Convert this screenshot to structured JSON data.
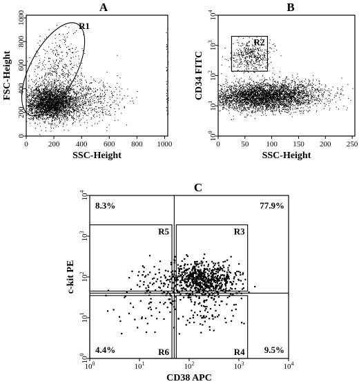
{
  "panels": [
    {
      "panel_label": "A",
      "chart_data": {
        "type": "scatter",
        "xlabel": "SSC-Height",
        "ylabel": "FSC-Height",
        "xlim": [
          0,
          1023
        ],
        "ylim": [
          0,
          1023
        ],
        "x_ticks": [
          {
            "label": "0",
            "v": 0
          },
          {
            "label": "200",
            "v": 200
          },
          {
            "label": "400",
            "v": 400
          },
          {
            "label": "600",
            "v": 600
          },
          {
            "label": "800",
            "v": 800
          },
          {
            "label": "1000",
            "v": 1000
          }
        ],
        "y_ticks": [
          {
            "label": "0",
            "v": 0
          },
          {
            "label": "200",
            "v": 200
          },
          {
            "label": "400",
            "v": 400
          },
          {
            "label": "600",
            "v": 600
          },
          {
            "label": "800",
            "v": 800
          },
          {
            "label": "1000",
            "v": 1000
          }
        ],
        "gates": [
          {
            "name": "R1",
            "shape": "ellipse",
            "x_range": [
              30,
              360
            ],
            "y_range": [
              130,
              1000
            ]
          }
        ],
        "clusters": [
          {
            "center": [
              170,
              280
            ],
            "spread": [
              90,
              70
            ],
            "count": 2600
          },
          {
            "center": [
              330,
              300
            ],
            "spread": [
              170,
              90
            ],
            "count": 900
          },
          {
            "center": [
              230,
              520
            ],
            "spread": [
              90,
              170
            ],
            "count": 450
          }
        ]
      }
    },
    {
      "panel_label": "B",
      "chart_data": {
        "type": "scatter",
        "xlabel": "SSC-Height",
        "ylabel": "CD34 FITC",
        "xlim": [
          0,
          255
        ],
        "ylim": [
          1,
          10000
        ],
        "y_scale": "log",
        "x_ticks": [
          {
            "label": "0",
            "v": 0
          },
          {
            "label": "50",
            "v": 50
          },
          {
            "label": "100",
            "v": 100
          },
          {
            "label": "150",
            "v": 150
          },
          {
            "label": "200",
            "v": 200
          },
          {
            "label": "250",
            "v": 250
          }
        ],
        "y_ticks": [
          {
            "label": "10",
            "sup": "0",
            "v": 1
          },
          {
            "label": "10",
            "sup": "1",
            "v": 10
          },
          {
            "label": "10",
            "sup": "2",
            "v": 100
          },
          {
            "label": "10",
            "sup": "3",
            "v": 1000
          },
          {
            "label": "10",
            "sup": "4",
            "v": 10000
          }
        ],
        "gates": [
          {
            "name": "R2",
            "shape": "rect",
            "x_range": [
              25,
              92
            ],
            "y_range": [
              140,
              2000
            ]
          }
        ],
        "clusters": [
          {
            "center": [
              75,
              20
            ],
            "spread": [
              45,
              0.22
            ],
            "count": 3200
          },
          {
            "center": [
              130,
              25
            ],
            "spread": [
              40,
              0.25
            ],
            "count": 900
          },
          {
            "center": [
              60,
              450
            ],
            "spread": [
              18,
              0.25
            ],
            "count": 450
          }
        ]
      }
    },
    {
      "panel_label": "C",
      "chart_data": {
        "type": "scatter",
        "xlabel": "CD38 APC",
        "ylabel": "c-kit PE",
        "xlim": [
          1,
          10000
        ],
        "ylim": [
          1,
          10000
        ],
        "x_scale": "log",
        "y_scale": "log",
        "x_ticks": [
          {
            "label": "10",
            "sup": "0",
            "v": 1
          },
          {
            "label": "10",
            "sup": "1",
            "v": 10
          },
          {
            "label": "10",
            "sup": "2",
            "v": 100
          },
          {
            "label": "10",
            "sup": "3",
            "v": 1000
          },
          {
            "label": "10",
            "sup": "4",
            "v": 10000
          }
        ],
        "y_ticks": [
          {
            "label": "10",
            "sup": "0",
            "v": 1
          },
          {
            "label": "10",
            "sup": "1",
            "v": 10
          },
          {
            "label": "10",
            "sup": "2",
            "v": 100
          },
          {
            "label": "10",
            "sup": "3",
            "v": 1000
          },
          {
            "label": "10",
            "sup": "4",
            "v": 10000
          }
        ],
        "quadrant_split": {
          "x": 50,
          "y": 40
        },
        "quadrant_percentages": [
          {
            "label": "8.3%",
            "position": "top-left"
          },
          {
            "label": "77.9%",
            "position": "top-right"
          },
          {
            "label": "4.4%",
            "position": "bottom-left"
          },
          {
            "label": "9.5%",
            "position": "bottom-right"
          }
        ],
        "gates": [
          {
            "name": "R5",
            "x_range": [
              1,
              45
            ],
            "y_range": [
              45,
              1900
            ]
          },
          {
            "name": "R3",
            "x_range": [
              55,
              1500
            ],
            "y_range": [
              45,
              1900
            ]
          },
          {
            "name": "R6",
            "x_range": [
              1,
              45
            ],
            "y_range": [
              1,
              35
            ]
          },
          {
            "name": "R4",
            "x_range": [
              55,
              1500
            ],
            "y_range": [
              1,
              35
            ]
          }
        ],
        "clusters": [
          {
            "center": [
              180,
              90
            ],
            "spread": [
              0.35,
              0.22
            ],
            "count": 700
          },
          {
            "center": [
              20,
              80
            ],
            "spread": [
              0.35,
              0.3
            ],
            "count": 70
          },
          {
            "center": [
              15,
              15
            ],
            "spread": [
              0.4,
              0.3
            ],
            "count": 40
          },
          {
            "center": [
              200,
              15
            ],
            "spread": [
              0.35,
              0.3
            ],
            "count": 90
          }
        ]
      }
    }
  ]
}
